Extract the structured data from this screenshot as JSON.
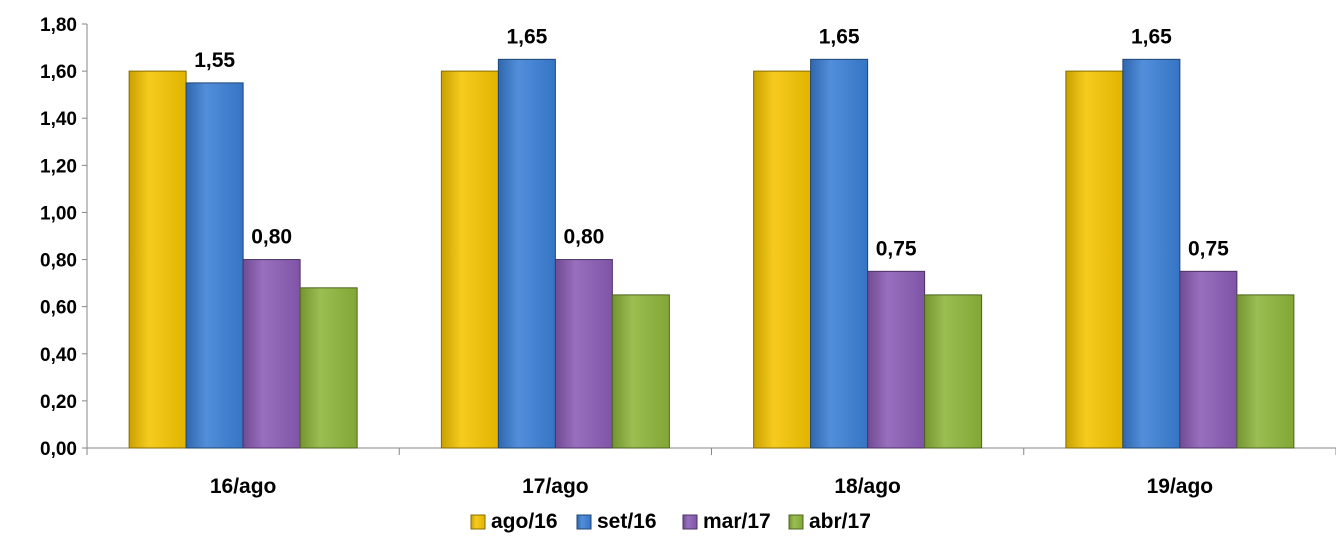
{
  "chart_data": {
    "type": "bar",
    "categories": [
      "16/ago",
      "17/ago",
      "18/ago",
      "19/ago"
    ],
    "series": [
      {
        "name": "ago/16",
        "color": "#F5C400",
        "values": [
          1.6,
          1.6,
          1.6,
          1.6
        ],
        "labels": [
          null,
          null,
          null,
          null
        ]
      },
      {
        "name": "set/16",
        "color": "#3A7FD5",
        "values": [
          1.55,
          1.65,
          1.65,
          1.65
        ],
        "labels": [
          "1,55",
          "1,65",
          "1,65",
          "1,65"
        ]
      },
      {
        "name": "mar/17",
        "color": "#8A5BB5",
        "values": [
          0.8,
          0.8,
          0.75,
          0.75
        ],
        "labels": [
          "0,80",
          "0,80",
          "0,75",
          "0,75"
        ]
      },
      {
        "name": "abr/17",
        "color": "#8DB53A",
        "values": [
          0.68,
          0.65,
          0.65,
          0.65
        ],
        "labels": [
          null,
          null,
          null,
          null
        ]
      }
    ],
    "ylim": [
      0,
      1.8
    ],
    "yticks": [
      0,
      0.2,
      0.4,
      0.6,
      0.8,
      1.0,
      1.2,
      1.4,
      1.6,
      1.8
    ],
    "ytick_labels": [
      "0,00",
      "0,20",
      "0,40",
      "0,60",
      "0,80",
      "1,00",
      "1,20",
      "1,40",
      "1,60",
      "1,80"
    ],
    "title": "",
    "xlabel": "",
    "ylabel": "",
    "grid": false,
    "legend_position": "bottom"
  }
}
